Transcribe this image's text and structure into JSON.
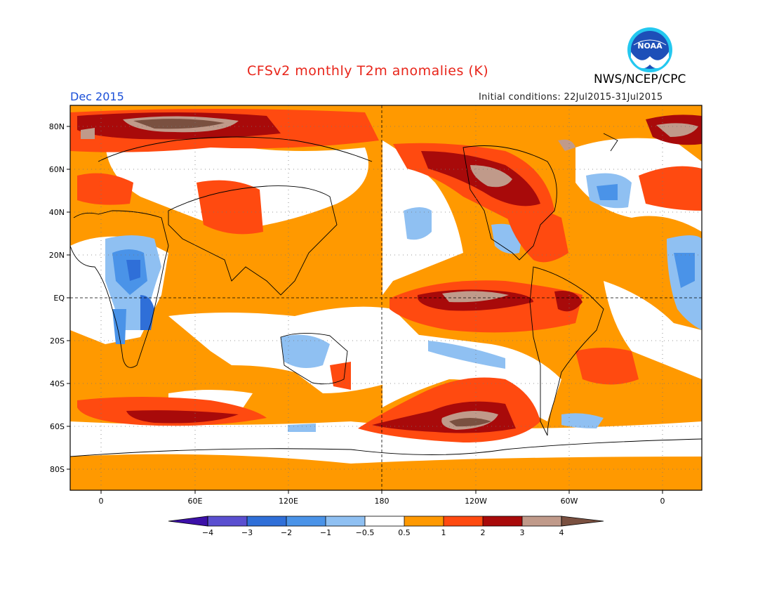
{
  "header": {
    "title": "CFSv2 monthly T2m anomalies (K)",
    "organization": "NWS/NCEP/CPC",
    "logo_text": "NOAA",
    "valid_month": "Dec 2015",
    "initial_conditions": "Initial conditions: 22Jul2015-31Jul2015"
  },
  "map": {
    "lat_labels": [
      "80N",
      "60N",
      "40N",
      "20N",
      "EQ",
      "20S",
      "40S",
      "60S",
      "80S"
    ],
    "lon_labels": [
      "0",
      "60E",
      "120E",
      "180",
      "120W",
      "60W",
      "0"
    ]
  },
  "colorbar": {
    "labels": [
      "−4",
      "−3",
      "−2",
      "−1",
      "−0.5",
      "0.5",
      "1",
      "2",
      "3",
      "4"
    ],
    "colors": [
      "#3c10a8",
      "#5a4fd0",
      "#2f6fd8",
      "#4a93e8",
      "#8fc0f2",
      "#ffffff",
      "#ff9900",
      "#ff4a10",
      "#a80a0a",
      "#c09a8a",
      "#7a5040"
    ]
  }
}
